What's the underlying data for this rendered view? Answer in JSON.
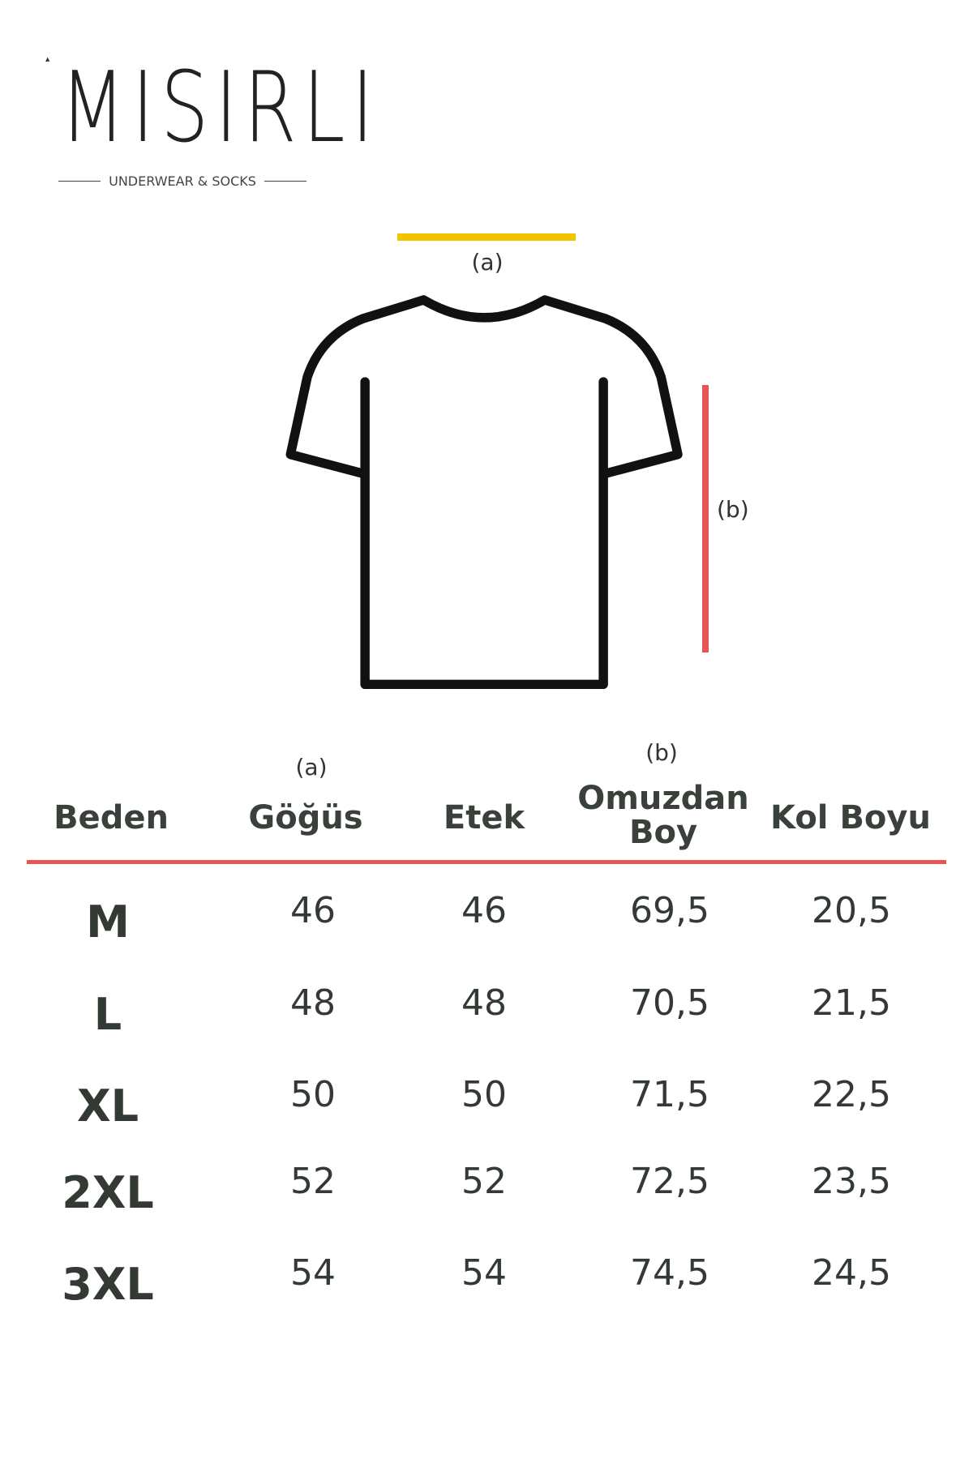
{
  "brand": {
    "name": "MISIRLI",
    "tagline": "UNDERWEAR & SOCKS"
  },
  "diagram": {
    "label_a": "(a)",
    "label_b": "(b)",
    "color_a": "#f0c400",
    "color_b": "#e85555"
  },
  "table": {
    "headers": [
      {
        "label": "Beden",
        "note": ""
      },
      {
        "label": "Göğüs",
        "note": "(a)"
      },
      {
        "label": "Etek",
        "note": ""
      },
      {
        "label": "Omuzdan",
        "label2": "Boy",
        "note": "(b)"
      },
      {
        "label": "Kol Boyu",
        "note": ""
      }
    ],
    "rows": [
      {
        "size": "M",
        "values": [
          "46",
          "46",
          "69,5",
          "20,5"
        ]
      },
      {
        "size": "L",
        "values": [
          "48",
          "48",
          "70,5",
          "21,5"
        ]
      },
      {
        "size": "XL",
        "values": [
          "50",
          "50",
          "71,5",
          "22,5"
        ]
      },
      {
        "size": "2XL",
        "values": [
          "52",
          "52",
          "72,5",
          "23,5"
        ]
      },
      {
        "size": "3XL",
        "values": [
          "54",
          "54",
          "74,5",
          "24,5"
        ]
      }
    ],
    "divider_color": "#e85555"
  }
}
